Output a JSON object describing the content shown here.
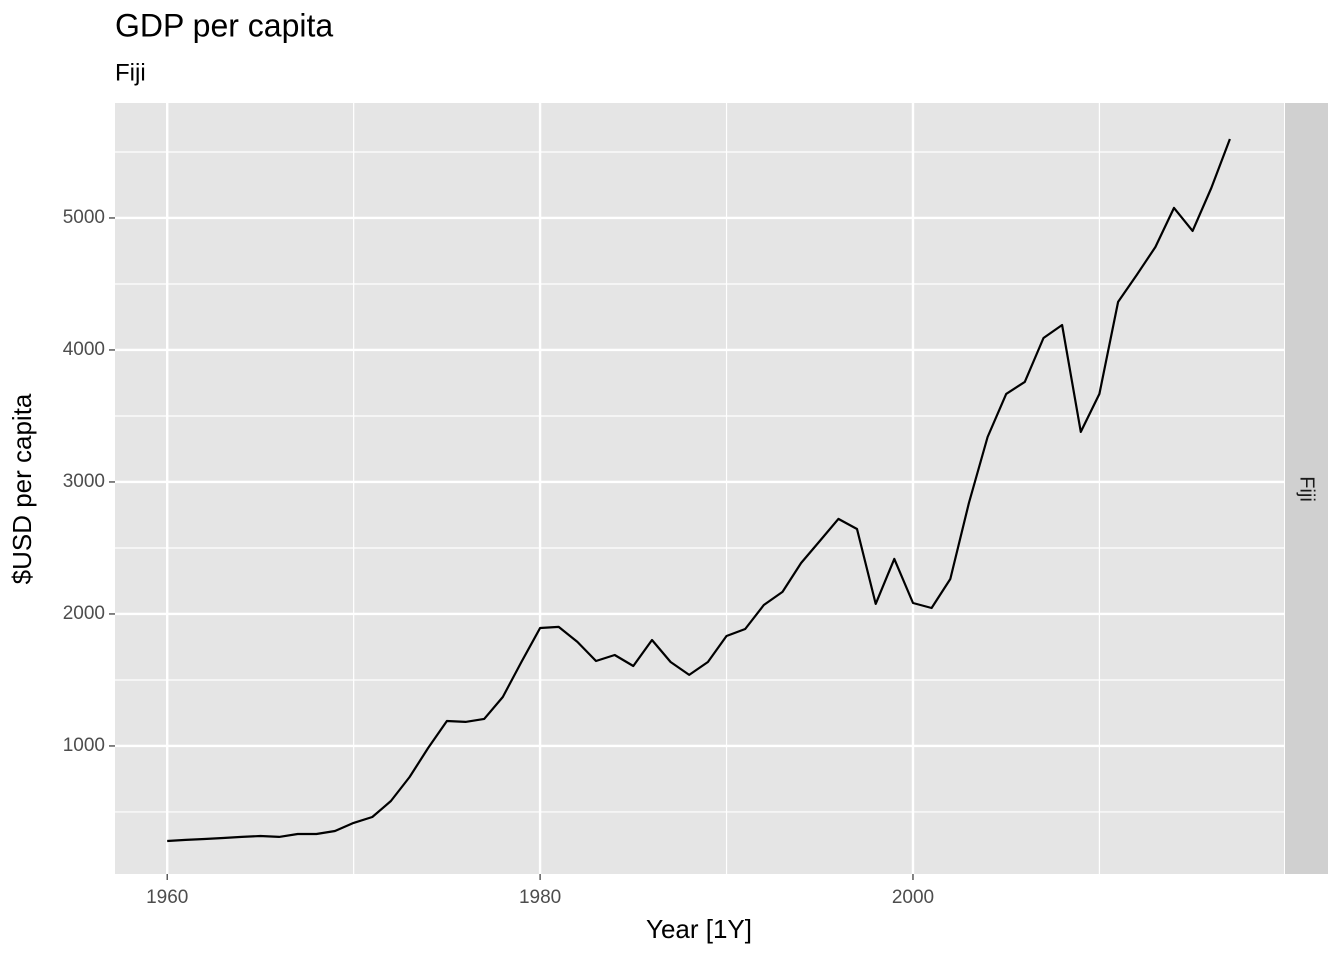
{
  "chart_data": {
    "type": "line",
    "title": "GDP per capita",
    "subtitle": "Fiji",
    "facet_label": "Fiji",
    "x_label": "Year [1Y]",
    "y_label": "$USD per capita",
    "x": [
      1960,
      1961,
      1962,
      1963,
      1964,
      1965,
      1966,
      1967,
      1968,
      1969,
      1970,
      1971,
      1972,
      1973,
      1974,
      1975,
      1976,
      1977,
      1978,
      1979,
      1980,
      1981,
      1982,
      1983,
      1984,
      1985,
      1986,
      1987,
      1988,
      1989,
      1990,
      1991,
      1992,
      1993,
      1994,
      1995,
      1996,
      1997,
      1998,
      1999,
      2000,
      2001,
      2002,
      2003,
      2004,
      2005,
      2006,
      2007,
      2008,
      2009,
      2010,
      2011,
      2012,
      2013,
      2014,
      2015,
      2016,
      2017
    ],
    "series": [
      {
        "name": "Fiji",
        "color": "#000000",
        "values": [
          280,
          288,
          295,
          303,
          311,
          318,
          311,
          333,
          333,
          356,
          417,
          462,
          583,
          765,
          985,
          1189,
          1182,
          1205,
          1371,
          1636,
          1894,
          1902,
          1788,
          1644,
          1689,
          1606,
          1803,
          1636,
          1538,
          1636,
          1833,
          1886,
          2068,
          2167,
          2386,
          2553,
          2720,
          2644,
          2076,
          2417,
          2083,
          2045,
          2265,
          2841,
          3341,
          3667,
          3758,
          4091,
          4189,
          3379,
          3667,
          4364,
          4568,
          4780,
          5076,
          4902,
          5227,
          5598
        ]
      }
    ],
    "xlim": [
      1957.2,
      2019.9
    ],
    "xticks": [
      1960,
      1980,
      2000
    ],
    "x_minor_ticks": [
      1970,
      1990,
      2010
    ],
    "ylim": [
      30,
      5871
    ],
    "yticks": [
      1000,
      2000,
      3000,
      4000,
      5000
    ],
    "y_minor_ticks": [
      500,
      1500,
      2500,
      3500,
      4500,
      5500
    ],
    "grid": true
  }
}
